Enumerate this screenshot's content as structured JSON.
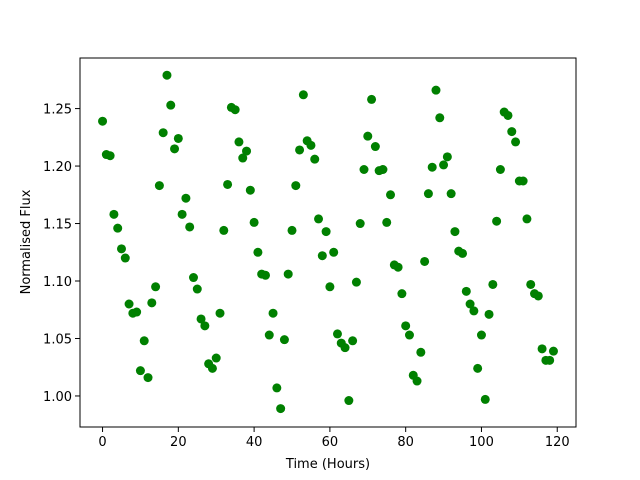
{
  "chart_data": {
    "type": "scatter",
    "xlabel": "Time (Hours)",
    "ylabel": "Normalised Flux",
    "color": "#008000",
    "x": [
      0,
      1,
      2,
      3,
      4,
      5,
      6,
      7,
      8,
      9,
      10,
      11,
      12,
      13,
      14,
      15,
      16,
      17,
      18,
      19,
      20,
      21,
      22,
      23,
      24,
      25,
      26,
      27,
      28,
      29,
      30,
      31,
      32,
      33,
      34,
      35,
      36,
      37,
      38,
      39,
      40,
      41,
      42,
      43,
      44,
      45,
      46,
      47,
      48,
      49,
      50,
      51,
      52,
      53,
      54,
      55,
      56,
      57,
      58,
      59,
      60,
      61,
      62,
      63,
      64,
      65,
      66,
      67,
      68,
      69,
      70,
      71,
      72,
      73,
      74,
      75,
      76,
      77,
      78,
      79,
      80,
      81,
      82,
      83,
      84,
      85,
      86,
      87,
      88,
      89,
      90,
      91,
      92,
      93,
      94,
      95,
      96,
      97,
      98,
      99,
      100,
      101,
      102,
      103,
      104,
      105,
      106,
      107,
      108,
      109,
      110,
      111,
      112,
      113,
      114,
      115,
      116,
      117,
      118,
      119
    ],
    "values": [
      1.239,
      1.21,
      1.209,
      1.158,
      1.146,
      1.128,
      1.12,
      1.08,
      1.072,
      1.073,
      1.022,
      1.048,
      1.016,
      1.081,
      1.095,
      1.183,
      1.229,
      1.279,
      1.253,
      1.215,
      1.224,
      1.158,
      1.172,
      1.147,
      1.103,
      1.093,
      1.067,
      1.061,
      1.028,
      1.024,
      1.033,
      1.072,
      1.144,
      1.184,
      1.251,
      1.249,
      1.221,
      1.207,
      1.213,
      1.179,
      1.151,
      1.125,
      1.106,
      1.105,
      1.053,
      1.072,
      1.007,
      0.989,
      1.049,
      1.106,
      1.144,
      1.183,
      1.214,
      1.262,
      1.222,
      1.218,
      1.206,
      1.154,
      1.122,
      1.143,
      1.095,
      1.125,
      1.054,
      1.046,
      1.042,
      0.996,
      1.048,
      1.099,
      1.15,
      1.197,
      1.226,
      1.258,
      1.217,
      1.196,
      1.197,
      1.151,
      1.175,
      1.114,
      1.112,
      1.089,
      1.061,
      1.053,
      1.018,
      1.013,
      1.038,
      1.117,
      1.176,
      1.199,
      1.266,
      1.242,
      1.201,
      1.208,
      1.176,
      1.143,
      1.126,
      1.124,
      1.091,
      1.08,
      1.074,
      1.024,
      1.053,
      0.997,
      1.071,
      1.097,
      1.152,
      1.197,
      1.247,
      1.244,
      1.23,
      1.221,
      1.187,
      1.187,
      1.154,
      1.097,
      1.089,
      1.087,
      1.041,
      1.031,
      1.031,
      1.039
    ],
    "xlim": [
      -5.95,
      124.95
    ],
    "ylim": [
      0.973,
      1.294
    ],
    "xticks": [
      0,
      20,
      40,
      60,
      80,
      100,
      120
    ],
    "yticks": [
      {
        "value": 1.0,
        "label": "1.00"
      },
      1.05,
      {
        "value": 1.1,
        "label": "1.10"
      },
      1.15,
      {
        "value": 1.2,
        "label": "1.20"
      },
      1.25
    ]
  }
}
